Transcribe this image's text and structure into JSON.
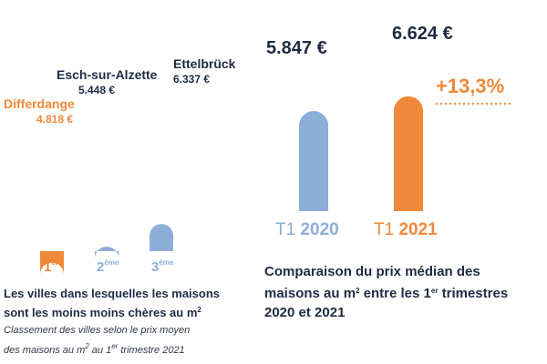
{
  "colors": {
    "orange": "#f0883a",
    "blue": "#8caed8",
    "text": "#1f2a44",
    "dots": "#f0883a"
  },
  "chart_data": [
    {
      "type": "bar",
      "categories": [
        "Differdange",
        "Esch-sur-Alzette",
        "Ettelbrück"
      ],
      "values": [
        4818,
        5448,
        6337
      ],
      "value_labels": [
        "4.818 €",
        "5.448 €",
        "6.337 €"
      ],
      "rank_numbers": [
        "1",
        "2",
        "3"
      ],
      "rank_suffixes": [
        "er",
        "ème",
        "ème"
      ],
      "highlight_index": 0,
      "caption_line1": "Les villes dans lesquelles les maisons",
      "caption_line2": "sont les moins moins chères au m",
      "caption_sup": "2",
      "note_line1": "Classement des villes selon le prix moyen",
      "note_line2_a": "des maisons au m",
      "note_line2_sup1": "2",
      "note_line2_b": " au 1",
      "note_line2_sup2": "er",
      "note_line2_c": " trimestre 2021"
    },
    {
      "type": "bar",
      "categories": [
        "T1 2020",
        "T1 2021"
      ],
      "period_prefix": "T1",
      "years": [
        "2020",
        "2021"
      ],
      "values": [
        5847,
        6624
      ],
      "value_labels": [
        "5.847 €",
        "6.624 €"
      ],
      "change_label": "+13,3%",
      "caption_line1": "Comparaison du prix médian des",
      "caption_line2_a": "maisons au m",
      "caption_line2_sup": "2",
      "caption_line2_b": " entre les 1",
      "caption_line2_sup2": "er",
      "caption_line2_c": " trimestres",
      "caption_line3": "2020 et 2021"
    }
  ]
}
